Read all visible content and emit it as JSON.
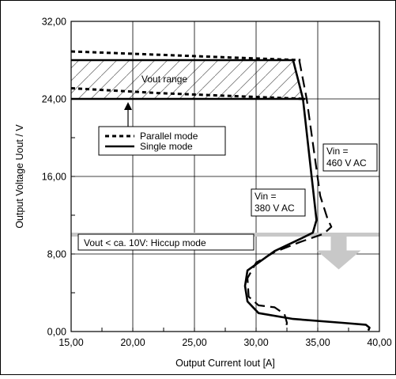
{
  "chart_data": {
    "type": "line",
    "xlabel": "Output Current Iout [A]",
    "ylabel": "Output Voltage Uout / V",
    "xlim": [
      15,
      40
    ],
    "ylim": [
      0,
      32
    ],
    "x_ticks": [
      "15,00",
      "20,00",
      "25,00",
      "30,00",
      "35,00",
      "40,00"
    ],
    "y_ticks": [
      "0,00",
      "8,00",
      "16,00",
      "24,00",
      "32,00"
    ],
    "x_tick_values": [
      15,
      20,
      25,
      30,
      35,
      40
    ],
    "y_tick_values": [
      0,
      8,
      16,
      24,
      32
    ],
    "grid": true,
    "legend": {
      "position": "left-middle",
      "entries": [
        {
          "label": "Parallel mode",
          "style": "dotted"
        },
        {
          "label": "Single mode",
          "style": "solid"
        }
      ]
    },
    "vout_range": {
      "label": "Vout range",
      "y_low": 24,
      "y_high": 28
    },
    "hiccup": {
      "label": "Vout < ca. 10V: Hiccup mode",
      "threshold": 10,
      "color": "#c8c8c8"
    },
    "annotations": [
      {
        "lines": [
          "Vin =",
          "460 V AC"
        ]
      },
      {
        "lines": [
          "Vin =",
          "380 V AC"
        ]
      }
    ],
    "series": [
      {
        "style": "solid",
        "points": [
          [
            15,
            28
          ],
          [
            33,
            28
          ],
          [
            33.8,
            24
          ],
          [
            34.9,
            11.5
          ],
          [
            34.6,
            10.2
          ],
          [
            33.5,
            9.5
          ],
          [
            31.5,
            8.3
          ],
          [
            29.3,
            6.3
          ],
          [
            29.1,
            4.7
          ],
          [
            29.3,
            3.1
          ],
          [
            30.2,
            1.9
          ],
          [
            33,
            1.3
          ],
          [
            37,
            0.9
          ],
          [
            38.9,
            0.7
          ],
          [
            39.2,
            0.4
          ],
          [
            39.1,
            0.1
          ]
        ]
      },
      {
        "style": "solid",
        "points": [
          [
            15,
            24
          ],
          [
            34,
            24
          ]
        ]
      },
      {
        "style": "dotted",
        "points": [
          [
            15,
            28.9
          ],
          [
            33.6,
            28
          ]
        ]
      },
      {
        "style": "dotted",
        "points": [
          [
            15,
            25.1
          ],
          [
            22,
            24.6
          ],
          [
            34,
            24
          ]
        ]
      },
      {
        "style": "dashed",
        "points": [
          [
            33.5,
            28
          ],
          [
            34.1,
            24
          ],
          [
            35.2,
            14
          ],
          [
            35.8,
            11.6
          ],
          [
            36.1,
            10.8
          ],
          [
            35.5,
            10.1
          ],
          [
            33.5,
            9.2
          ],
          [
            31.5,
            8.2
          ],
          [
            30,
            7.1
          ],
          [
            29.3,
            5.5
          ],
          [
            29.4,
            3.6
          ],
          [
            30.2,
            2.7
          ],
          [
            31.5,
            2.5
          ],
          [
            32.3,
            1.8
          ],
          [
            32.5,
            0.9
          ],
          [
            32.4,
            0.2
          ]
        ]
      }
    ]
  }
}
